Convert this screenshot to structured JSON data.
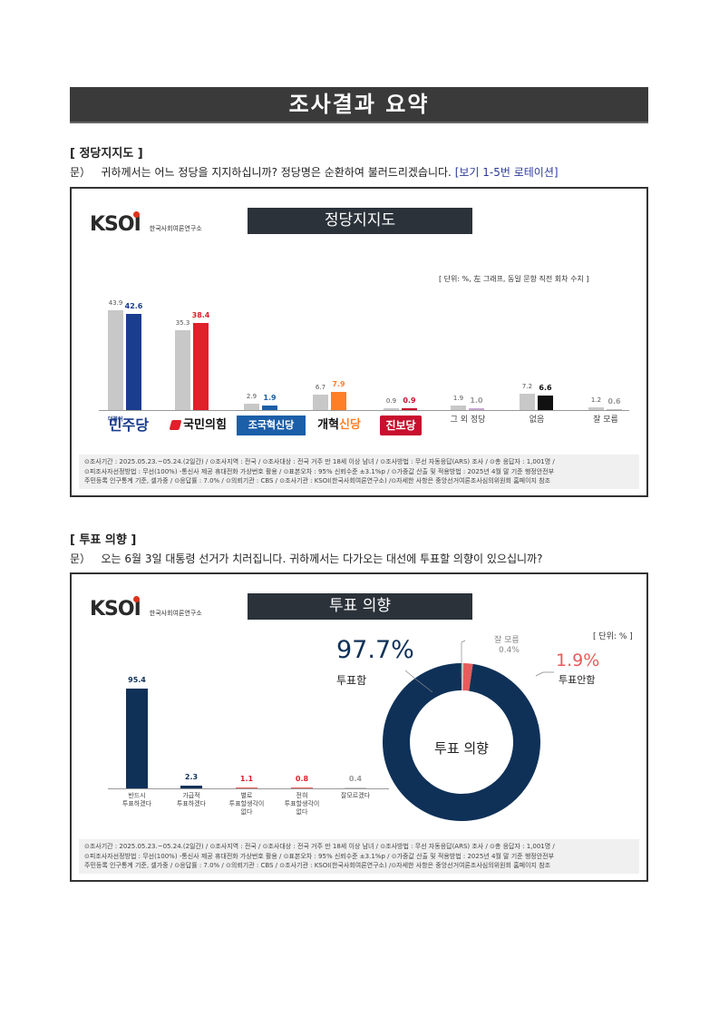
{
  "page_title": "조사결과 요약",
  "section1": {
    "heading": "[ 정당지지도 ]",
    "question_prefix": "문）",
    "question_text": "귀하께서는 어느 정당을 지지하십니까? 정당명은 순환하여 불러드리겠습니다.",
    "question_note": "[보기 1-5번 로테이션]",
    "panel": {
      "logo": "KSOI",
      "logo_sub": "한국사회여론연구소",
      "title": "정당지지도",
      "unit": "[ 단위: %, 左 그래프, 동일 문항 직전 회차 수치 ]",
      "colors": {
        "prev": "#c8c8c8",
        "minju": "#1b3d8f",
        "ppp": "#e0202a",
        "rebuild": "#1b5fa8",
        "reform": "#ff7f27",
        "progressive": "#c8102e",
        "other": "#c7a6cf",
        "none": "#111111",
        "dk": "#bdbdbd"
      },
      "footer_lines": [
        "⊙조사기간 : 2025.05.23.~05.24.(2일간) / ⊙조사지역 : 전국 / ⊙조사대상 : 전국 거주 만 18세 이상 남녀 / ⊙조사방법 : 무선 자동응답(ARS) 조사 / ⊙총 응답자 : 1,001명 /",
        "⊙피조사자선정방법 : 무선(100%) -통신사 제공 휴대전화 가상번호 활용 / ⊙표본오차 : 95% 신뢰수준 ±3.1%p / ⊙가중값 산출 및 적용방법 : 2025년 4월 말 기준 행정안전부",
        "주민등록 인구통계 기준, 셀가중 / ⊙응답률 : 7.0% / ⊙의뢰기관 : CBS / ⊙조사기관 : KSOI(한국사회여론연구소) /⊙자세한 사항은 중앙선거여론조사심의위원회 홈페이지 참조"
      ]
    }
  },
  "section2": {
    "heading": "[ 투표 의향 ]",
    "question_prefix": "문）",
    "question_text": "오는 6월 3일 대통령 선거가 치러집니다. 귀하께서는 다가오는 대선에 투표할 의향이 있으십니까?",
    "panel": {
      "logo": "KSOI",
      "logo_sub": "한국사회여론연구소",
      "title": "투표 의향",
      "unit": "[ 단위: % ]",
      "donut": {
        "center": "투표 의향",
        "vote_pct": "97.7%",
        "vote_label": "투표함",
        "novote_pct": "1.9%",
        "novote_label": "투표안함",
        "dk_label": "잘 모름",
        "dk_pct": "0.4%",
        "colors": {
          "vote": "#0f3158",
          "novote": "#e85c5c",
          "dk": "#cccccc"
        }
      },
      "footer_lines": [
        "⊙조사기간 : 2025.05.23.~05.24.(2일간) / ⊙조사지역 : 전국 / ⊙조사대상 : 전국 거주 만 18세 이상 남녀 / ⊙조사방법 : 무선 자동응답(ARS) 조사 / ⊙총 응답자 : 1,001명 /",
        "⊙피조사자선정방법 : 무선(100%) -통신사 제공 휴대전화 가상번호 활용 / ⊙표본오차 : 95% 신뢰수준 ±3.1%p / ⊙가중값 산출 및 적용방법 : 2025년 4월 말 기준 행정안전부",
        "주민등록 인구통계 기준, 셀가중 / ⊙응답률 : 7.0% / ⊙의뢰기관 : CBS / ⊙조사기관 : KSOI(한국사회여론연구소) /⊙자세한 사항은 중앙선거여론조사심의위원회 홈페이지 참조"
      ]
    }
  },
  "chart_data": [
    {
      "type": "bar",
      "title": "정당지지도",
      "categories": [
        "더불어민주당",
        "국민의힘",
        "조국혁신당",
        "개혁신당",
        "진보당",
        "그 외 정당",
        "없음",
        "잘 모름"
      ],
      "category_labels": [
        "더불어 민주당",
        "국민의힘",
        "조국혁신당",
        "개혁신당",
        "진보당",
        "그 외 정당",
        "없음",
        "잘 모름"
      ],
      "series": [
        {
          "values": [
            43.9,
            35.3,
            2.9,
            6.7,
            0.9,
            1.9,
            7.2,
            1.2
          ]
        },
        {
          "values": [
            42.6,
            38.4,
            1.9,
            7.9,
            0.9,
            1.0,
            6.6,
            0.6
          ]
        }
      ],
      "ylim": [
        0,
        50
      ]
    },
    {
      "type": "bar",
      "title": "투표 의향",
      "categories": [
        "반드시 투표하겠다",
        "가급적 투표하겠다",
        "별로 투표할 생각이 없다",
        "전혀 투표할 생각이 없다",
        "잘 모르겠다"
      ],
      "values": [
        95.4,
        2.3,
        1.1,
        0.8,
        0.4
      ],
      "colors": [
        "#0f3158",
        "#0f3158",
        "#e85c5c",
        "#e85c5c",
        "#cccccc"
      ],
      "ylim": [
        0,
        100
      ]
    },
    {
      "type": "pie",
      "title": "투표 의향",
      "categories": [
        "투표함",
        "투표안함",
        "잘 모름"
      ],
      "values": [
        97.7,
        1.9,
        0.4
      ]
    }
  ]
}
